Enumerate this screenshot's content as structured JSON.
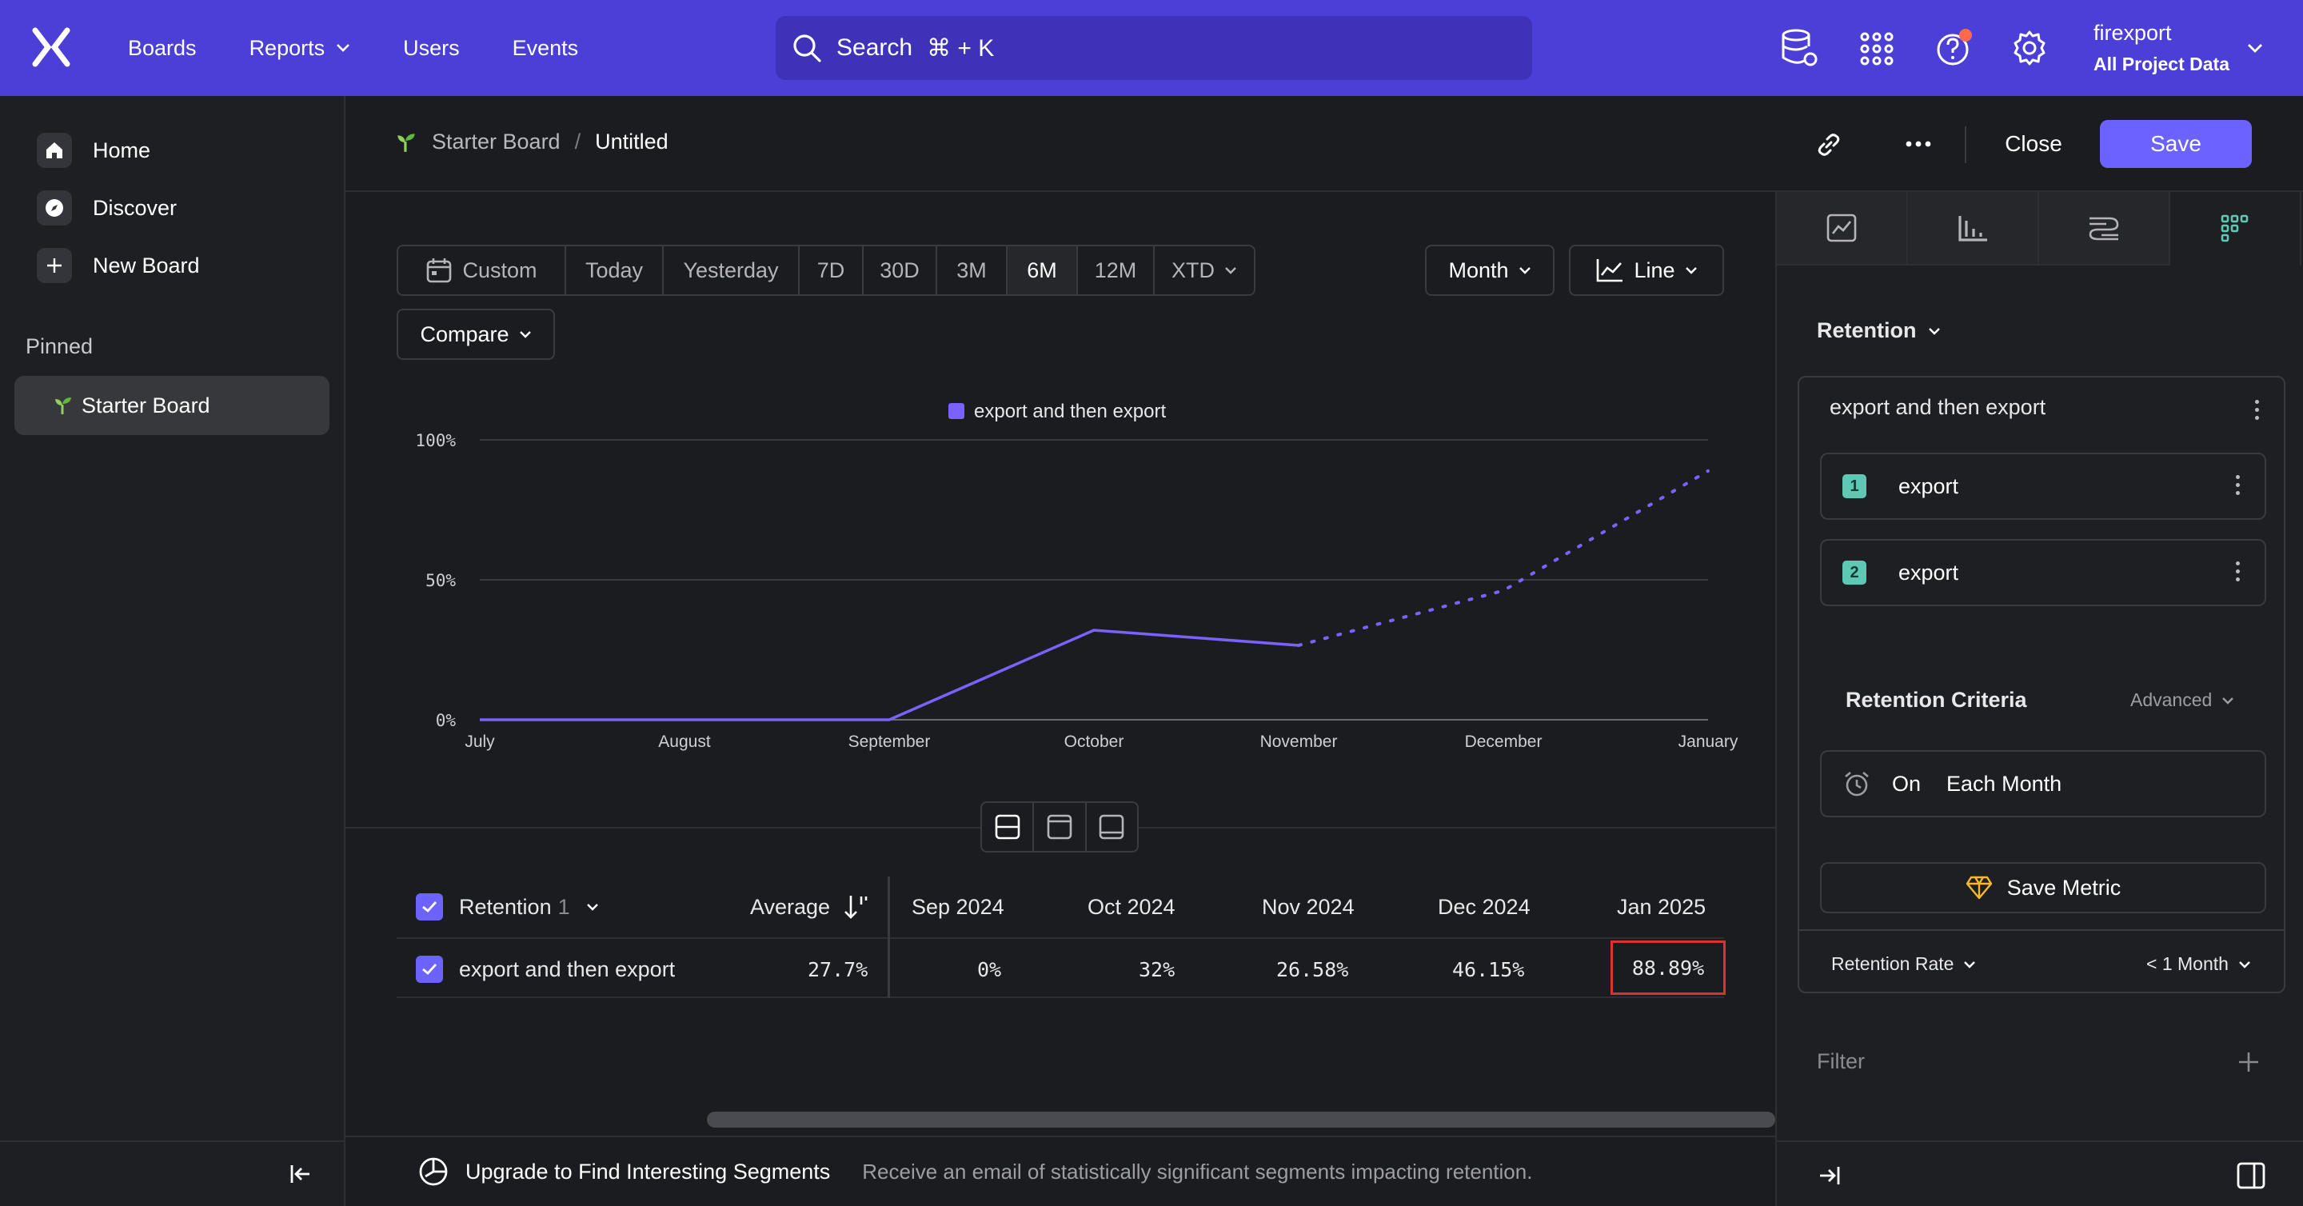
{
  "topnav": {
    "items": [
      "Boards",
      "Reports",
      "Users",
      "Events"
    ],
    "search_label": "Search",
    "search_shortcut": "⌘ + K",
    "account_name": "firexport",
    "account_scope": "All Project Data",
    "brand_color": "#4c3fd7"
  },
  "sidebar": {
    "home": "Home",
    "discover": "Discover",
    "new_board": "New Board",
    "pinned_label": "Pinned",
    "pinned_item": "Starter Board"
  },
  "header": {
    "crumb_board": "Starter Board",
    "crumb_sep": "/",
    "crumb_title": "Untitled",
    "close_label": "Close",
    "save_label": "Save"
  },
  "controls": {
    "ranges": [
      "Custom",
      "Today",
      "Yesterday",
      "7D",
      "30D",
      "3M",
      "6M",
      "12M",
      "XTD"
    ],
    "active_range": "6M",
    "interval": "Month",
    "chart_type": "Line",
    "compare": "Compare"
  },
  "chart_data": {
    "type": "line",
    "legend": "export and then export",
    "x": [
      "July",
      "August",
      "September",
      "October",
      "November",
      "December",
      "January"
    ],
    "yticks": [
      "100%",
      "50%",
      "0%"
    ],
    "ylim": [
      0,
      100
    ],
    "series": [
      {
        "name": "export and then export",
        "values": [
          0,
          0,
          0,
          32,
          26.58,
          46.15,
          88.89
        ],
        "color": "#7b61ff",
        "dotted_from_index": 4
      }
    ]
  },
  "table": {
    "header_metric": "Retention",
    "header_count": "1",
    "header_average": "Average",
    "columns": [
      "Sep 2024",
      "Oct 2024",
      "Nov 2024",
      "Dec 2024",
      "Jan 2025"
    ],
    "rows": [
      {
        "label": "export and then export",
        "average": "27.7%",
        "values": [
          "0%",
          "32%",
          "26.58%",
          "46.15%",
          "88.89%"
        ]
      }
    ],
    "highlight_color": "#e0312b"
  },
  "footer": {
    "upgrade": "Upgrade to Find Interesting Segments",
    "description": "Receive an email of statistically significant segments impacting retention."
  },
  "rpanel": {
    "report_type": "Retention",
    "metric_name": "export and then export",
    "steps": [
      {
        "num": "1",
        "label": "export"
      },
      {
        "num": "2",
        "label": "export"
      }
    ],
    "criteria_label": "Retention Criteria",
    "advanced": "Advanced",
    "criteria_on": "On",
    "criteria_value": "Each Month",
    "save_metric": "Save Metric",
    "rate_label": "Retention Rate",
    "rate_window": "< 1 Month",
    "filter_label": "Filter"
  }
}
